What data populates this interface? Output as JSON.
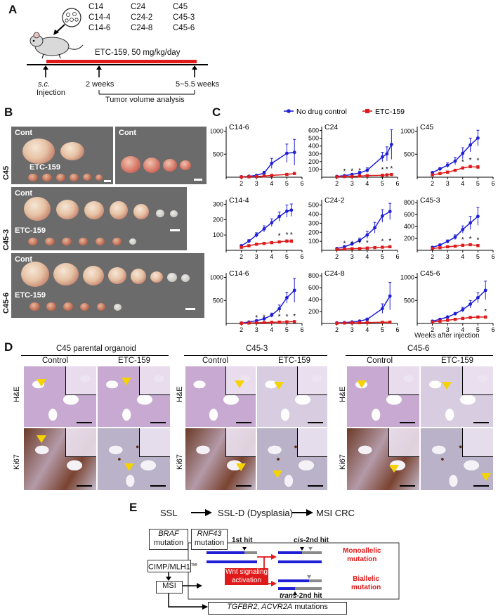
{
  "panels": {
    "A": {
      "letter": "A",
      "organoids": [
        "C14",
        "C14-4",
        "C14-6",
        "C24",
        "C24-2",
        "C24-8",
        "C45",
        "C45-3",
        "C45-6"
      ],
      "treatment": "ETC-159, 50 mg/kg/day",
      "sc": "s.c.",
      "injection": "Injection",
      "two_weeks": "2 weeks",
      "end_weeks": "5~5.5 weeks",
      "analysis": "Tumor volume analysis"
    },
    "B": {
      "letter": "B",
      "rows": [
        {
          "name": "C45",
          "cont": "Cont",
          "cont2": "Cont",
          "drug": "ETC-159"
        },
        {
          "name": "C45-3",
          "cont": "Cont",
          "drug": "ETC-159"
        },
        {
          "name": "C45-6",
          "cont": "Cont",
          "drug": "ETC-159"
        }
      ]
    },
    "C": {
      "letter": "C",
      "legend": {
        "control": "No drug control",
        "drug": "ETC-159"
      },
      "xlabel": "Weeks after injection",
      "colors": {
        "control": "#1f1fd6",
        "drug": "#e01a1a"
      }
    },
    "D": {
      "letter": "D",
      "groups": [
        {
          "title": "C45 parental organoid",
          "control": "Control",
          "drug": "ETC-159"
        },
        {
          "title": "C45-3",
          "control": "Control",
          "drug": "ETC-159"
        },
        {
          "title": "C45-6",
          "control": "Control",
          "drug": "ETC-159"
        }
      ],
      "rows": [
        "H&E",
        "Ki67"
      ]
    },
    "E": {
      "letter": "E",
      "stages": [
        "SSL",
        "SSL-D (Dysplasia)",
        "MSI CRC"
      ],
      "braf": "BRAF",
      "braf_sub": "mutation",
      "rnf43": "RNF43",
      "rnf43_sub": "mutation",
      "cimp": "CIMP/MLH1",
      "cimp_sup": "me",
      "msi": "MSI",
      "first_hit": "1st hit",
      "cis": "cis",
      "cis_rest": "-2nd hit",
      "trans": "trans",
      "trans_rest": "-2nd hit",
      "wnt1": "Wnt signaling",
      "wnt2": "activation",
      "mono1": "Monoallelic",
      "mono2": "mutation",
      "bi1": "Biallelic",
      "bi2": "mutation",
      "tgfbr2": "TGFBR2, ACVR2A",
      "tgfbr2_rest": " mutations",
      "colors": {
        "red": "#e01a1a",
        "blue": "#1f1fd6",
        "grey": "#8a8a8a"
      }
    }
  },
  "chart_data": [
    {
      "type": "line",
      "title": "C14-6",
      "x": [
        2,
        2.5,
        3,
        3.5,
        4,
        5,
        5.5
      ],
      "xlim": [
        1,
        6
      ],
      "yticks": [
        500,
        1000
      ],
      "ylim": [
        0,
        1100
      ],
      "series": [
        {
          "name": "No drug control",
          "values": [
            10,
            20,
            40,
            90,
            300,
            520,
            540
          ],
          "err": [
            0,
            10,
            20,
            40,
            110,
            200,
            280
          ]
        },
        {
          "name": "ETC-159",
          "values": [
            5,
            10,
            15,
            25,
            40,
            60,
            80
          ],
          "err": [
            0,
            5,
            8,
            10,
            15,
            20,
            25
          ]
        }
      ],
      "stars": []
    },
    {
      "type": "line",
      "title": "C24",
      "x": [
        2,
        2.5,
        3,
        3.5,
        4,
        5,
        5.3,
        5.6
      ],
      "xlim": [
        1,
        6
      ],
      "yticks": [
        100,
        200,
        300,
        400,
        500,
        600
      ],
      "ylim": [
        0,
        650
      ],
      "series": [
        {
          "name": "No drug control",
          "values": [
            10,
            20,
            35,
            55,
            90,
            260,
            300,
            420
          ],
          "err": [
            0,
            8,
            12,
            20,
            30,
            60,
            90,
            190
          ]
        },
        {
          "name": "ETC-159",
          "values": [
            5,
            8,
            10,
            15,
            20,
            25,
            30,
            35
          ],
          "err": [
            0,
            3,
            4,
            5,
            6,
            8,
            8,
            10
          ]
        }
      ],
      "stars": [
        2.5,
        3,
        3.5,
        5,
        5.3,
        5.6
      ]
    },
    {
      "type": "line",
      "title": "C45",
      "x": [
        2,
        2.5,
        3,
        3.5,
        4,
        4.5,
        5
      ],
      "xlim": [
        1,
        6
      ],
      "yticks": [
        500,
        1000
      ],
      "ylim": [
        0,
        1100
      ],
      "series": [
        {
          "name": "No drug control",
          "values": [
            100,
            180,
            260,
            350,
            520,
            700,
            850
          ],
          "err": [
            10,
            30,
            50,
            80,
            120,
            150,
            170
          ]
        },
        {
          "name": "ETC-159",
          "values": [
            50,
            80,
            110,
            150,
            200,
            230,
            220
          ],
          "err": [
            5,
            10,
            15,
            20,
            25,
            30,
            30
          ]
        }
      ],
      "stars": [
        4,
        4.5,
        5
      ]
    },
    {
      "type": "line",
      "title": "C14-4",
      "x": [
        2,
        2.5,
        3,
        3.5,
        4,
        4.5,
        5,
        5.3
      ],
      "xlim": [
        1,
        6
      ],
      "yticks": [
        100,
        200,
        300
      ],
      "ylim": [
        0,
        330
      ],
      "series": [
        {
          "name": "No drug control",
          "values": [
            30,
            60,
            100,
            140,
            180,
            220,
            255,
            262
          ],
          "err": [
            5,
            10,
            15,
            20,
            25,
            30,
            40,
            40
          ]
        },
        {
          "name": "ETC-159",
          "values": [
            20,
            30,
            40,
            45,
            50,
            55,
            60,
            60
          ],
          "err": [
            3,
            5,
            6,
            6,
            7,
            7,
            8,
            8
          ]
        }
      ],
      "stars": [
        4.5,
        5,
        5.3
      ]
    },
    {
      "type": "line",
      "title": "C24-2",
      "x": [
        2,
        2.5,
        3,
        3.5,
        4,
        4.5,
        5,
        5.5
      ],
      "xlim": [
        1,
        6
      ],
      "yticks": [
        100,
        200,
        300,
        400,
        500
      ],
      "ylim": [
        0,
        560
      ],
      "series": [
        {
          "name": "No drug control",
          "values": [
            20,
            40,
            70,
            110,
            170,
            250,
            380,
            430
          ],
          "err": [
            5,
            8,
            15,
            25,
            40,
            60,
            70,
            90
          ]
        },
        {
          "name": "ETC-159",
          "values": [
            10,
            15,
            18,
            20,
            25,
            30,
            35,
            40
          ],
          "err": [
            2,
            3,
            3,
            4,
            4,
            5,
            6,
            6
          ]
        }
      ],
      "stars": [
        2.5,
        3,
        3.5,
        4,
        5,
        5.5
      ]
    },
    {
      "type": "line",
      "title": "C45-3",
      "x": [
        2,
        2.5,
        3,
        3.5,
        4,
        4.5,
        5
      ],
      "xlim": [
        1,
        6
      ],
      "yticks": [
        200,
        400,
        600,
        800
      ],
      "ylim": [
        0,
        850
      ],
      "series": [
        {
          "name": "No drug control",
          "values": [
            50,
            90,
            150,
            220,
            350,
            460,
            570
          ],
          "err": [
            5,
            15,
            25,
            40,
            60,
            110,
            150
          ]
        },
        {
          "name": "ETC-159",
          "values": [
            30,
            45,
            60,
            70,
            85,
            95,
            80
          ],
          "err": [
            3,
            5,
            6,
            8,
            10,
            10,
            10
          ]
        }
      ],
      "stars": [
        4,
        4.5,
        5
      ]
    },
    {
      "type": "line",
      "title": "C14-6",
      "x": [
        2,
        2.5,
        3,
        3.5,
        4,
        4.5,
        5,
        5.5
      ],
      "xlim": [
        1,
        6
      ],
      "yticks": [
        500,
        1000
      ],
      "ylim": [
        0,
        1100
      ],
      "series": [
        {
          "name": "No drug control",
          "values": [
            10,
            30,
            60,
            100,
            180,
            320,
            560,
            720
          ],
          "err": [
            2,
            8,
            15,
            25,
            45,
            80,
            120,
            260
          ]
        },
        {
          "name": "ETC-159",
          "values": [
            5,
            10,
            15,
            20,
            25,
            30,
            35,
            40
          ],
          "err": [
            1,
            2,
            3,
            4,
            5,
            6,
            6,
            7
          ]
        }
      ],
      "stars": [
        3,
        3.5,
        4.5,
        5,
        5.5
      ]
    },
    {
      "type": "line",
      "title": "C24-8",
      "x": [
        2,
        2.5,
        3,
        3.5,
        4,
        5,
        5.5
      ],
      "xlim": [
        1,
        6
      ],
      "yticks": [
        200,
        400,
        600,
        800
      ],
      "ylim": [
        0,
        850
      ],
      "series": [
        {
          "name": "No drug control",
          "values": [
            10,
            15,
            25,
            40,
            70,
            250,
            460
          ],
          "err": [
            2,
            4,
            6,
            10,
            20,
            80,
            230
          ]
        },
        {
          "name": "ETC-159",
          "values": [
            5,
            8,
            10,
            12,
            15,
            20,
            22
          ],
          "err": [
            1,
            2,
            2,
            3,
            3,
            4,
            4
          ]
        }
      ],
      "stars": []
    },
    {
      "type": "line",
      "title": "C45-6",
      "x": [
        2,
        2.5,
        3,
        3.5,
        4,
        4.5,
        5,
        5.5
      ],
      "xlim": [
        1,
        6
      ],
      "yticks": [
        500,
        1000
      ],
      "ylim": [
        0,
        1100
      ],
      "series": [
        {
          "name": "No drug control",
          "values": [
            50,
            90,
            140,
            210,
            300,
            420,
            560,
            720
          ],
          "err": [
            5,
            10,
            20,
            30,
            50,
            80,
            110,
            200
          ]
        },
        {
          "name": "ETC-159",
          "values": [
            30,
            50,
            70,
            90,
            110,
            130,
            140,
            140
          ],
          "err": [
            3,
            5,
            7,
            8,
            10,
            12,
            13,
            14
          ]
        }
      ],
      "stars": [
        5.5
      ]
    }
  ]
}
